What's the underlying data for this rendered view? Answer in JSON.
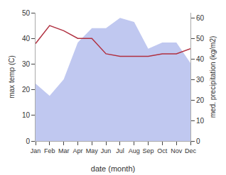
{
  "chart_data": {
    "type": "line",
    "categories": [
      "Jan",
      "Feb",
      "Mar",
      "Apr",
      "May",
      "Jun",
      "Jul",
      "Aug",
      "Sep",
      "Oct",
      "Nov",
      "Dec"
    ],
    "xlabel": "date (month)",
    "ylabel": "max temp (C)",
    "y2label": "med. precipitation (kg/m2)",
    "series": [
      {
        "type": "line",
        "color": "#b03040",
        "values": [
          38,
          45,
          43,
          40,
          40,
          34,
          33,
          33,
          33,
          34,
          34,
          36
        ]
      },
      {
        "type": "area",
        "color": "#c0c8f0",
        "axis": "y2",
        "values": [
          28,
          22,
          30,
          48,
          55,
          55,
          60,
          58,
          45,
          48,
          48,
          38
        ]
      }
    ],
    "ylim": [
      0,
      50
    ],
    "yticks": [
      0,
      10,
      20,
      30,
      40,
      50
    ],
    "y2lim": [
      0,
      62.5
    ],
    "y2ticks": [
      0,
      10,
      20,
      30,
      40,
      50,
      60
    ],
    "grid": false
  }
}
